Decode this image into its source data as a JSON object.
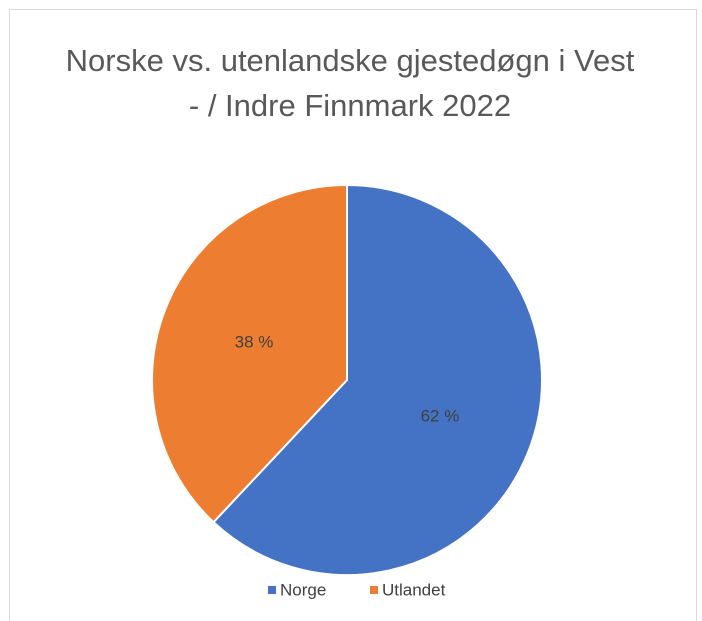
{
  "chart_data": {
    "type": "pie",
    "title": "Norske vs. utenlandske gjestedøgn i Vest - / Indre Finnmark 2022",
    "categories": [
      "Norge",
      "Utlandet"
    ],
    "values": [
      62,
      38
    ],
    "value_labels": [
      "62 %",
      "38 %"
    ],
    "colors": [
      "#4472c4",
      "#ed7d31"
    ],
    "legend": "bottom"
  }
}
